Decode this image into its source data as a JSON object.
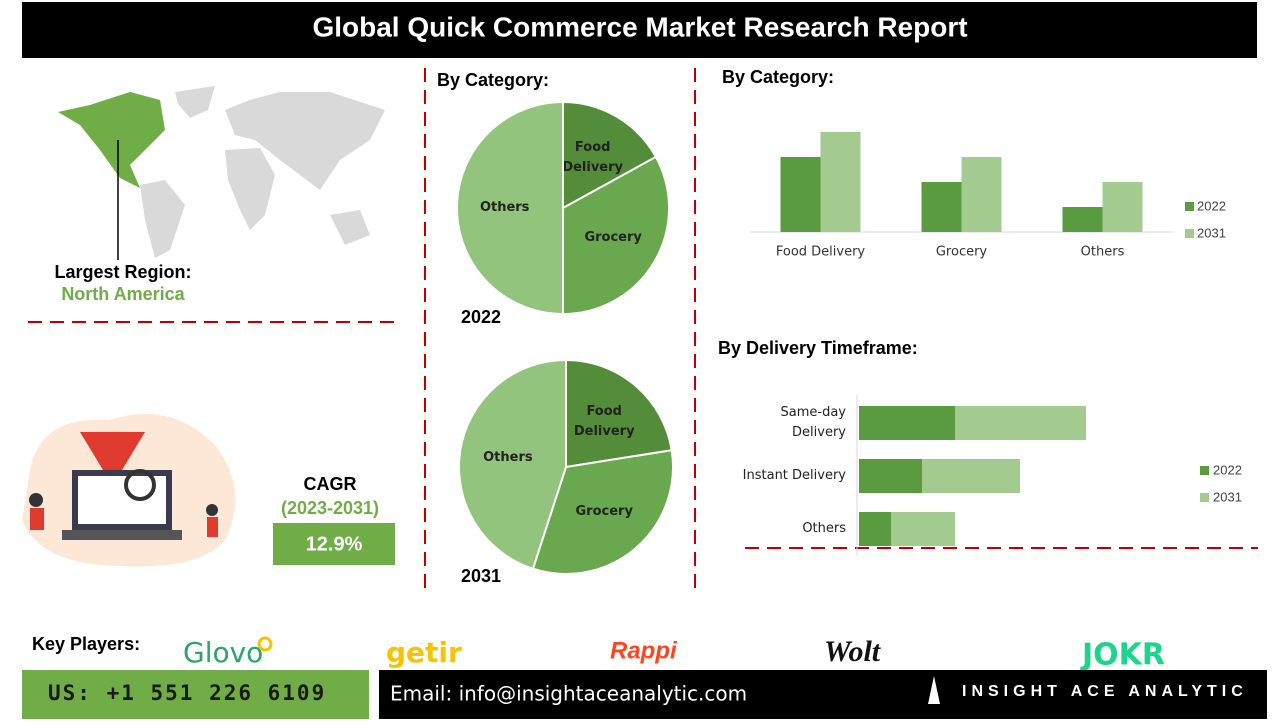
{
  "header": {
    "title": "Global Quick Commerce Market Research Report"
  },
  "region": {
    "label": "Largest Region:",
    "value": "North America"
  },
  "cagr": {
    "label": "CAGR",
    "period": "(2023-2031)",
    "value": "12.9%"
  },
  "chart_data": [
    {
      "type": "pie",
      "title": "By Category:",
      "subtitle": "2022",
      "categories": [
        "Food Delivery",
        "Grocery",
        "Others"
      ],
      "values": [
        17,
        33,
        50
      ],
      "colors": [
        "#548d3a",
        "#6aa84f",
        "#93c47d"
      ]
    },
    {
      "type": "pie",
      "subtitle": "2031",
      "categories": [
        "Food Delivery",
        "Grocery",
        "Others"
      ],
      "values": [
        22.5,
        32.5,
        45
      ],
      "colors": [
        "#548d3a",
        "#6aa84f",
        "#93c47d"
      ]
    },
    {
      "type": "bar",
      "title": "By Category:",
      "categories": [
        "Food Delivery",
        "Grocery",
        "Others"
      ],
      "series": [
        {
          "name": "2022",
          "color": "#5b9b40",
          "values": [
            3,
            2,
            1
          ]
        },
        {
          "name": "2031",
          "color": "#a3cb8f",
          "values": [
            4,
            3,
            2
          ]
        }
      ],
      "legend": "right"
    },
    {
      "type": "hbar",
      "stacked": true,
      "title": "By Delivery Timeframe:",
      "categories": [
        "Same-day Delivery",
        "Instant Delivery",
        "Others"
      ],
      "series": [
        {
          "name": "2022",
          "color": "#5b9b40",
          "values": [
            96,
            63,
            32
          ]
        },
        {
          "name": "2031",
          "color": "#a3cb8f",
          "values": [
            131,
            98,
            64
          ]
        }
      ],
      "legend": "right"
    }
  ],
  "key_players": {
    "label": "Key Players:",
    "names": [
      "Glovo",
      "getir",
      "Rappi",
      "Wolt",
      "JOKR"
    ]
  },
  "footer": {
    "phone": "US: +1 551 226 6109",
    "email": "Email: info@insightaceanalytic.com",
    "brand": "INSIGHT ACE ANALYTIC"
  }
}
